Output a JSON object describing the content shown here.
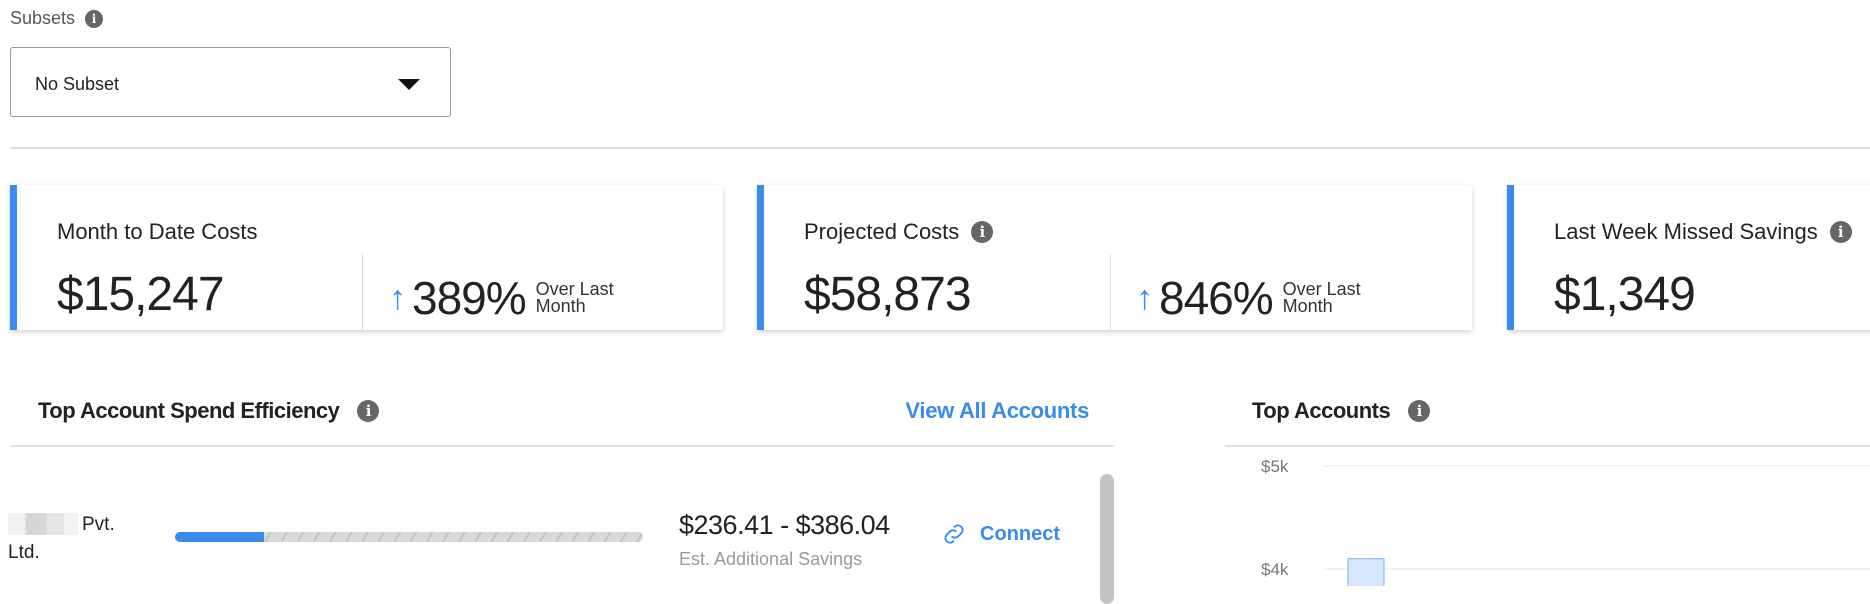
{
  "subsets": {
    "label": "Subsets",
    "selected": "No Subset",
    "info_icon": "info-icon"
  },
  "cards": [
    {
      "title": "Month to Date Costs",
      "value": "$15,247",
      "delta": "389%",
      "delta_direction": "up",
      "delta_label_1": "Over Last",
      "delta_label_2": "Month"
    },
    {
      "title": "Projected Costs",
      "value": "$58,873",
      "delta": "846%",
      "delta_direction": "up",
      "delta_label_1": "Over Last",
      "delta_label_2": "Month"
    },
    {
      "title": "Last Week Missed Savings",
      "value": "$1,349"
    }
  ],
  "efficiency": {
    "title": "Top Account Spend Efficiency",
    "view_all": "View All Accounts",
    "rows": [
      {
        "name_line1": "Pvt.",
        "name_line2": "Ltd.",
        "efficiency_percent": 19,
        "savings": "$236.41 - $386.04",
        "savings_label": "Est. Additional Savings",
        "action": "Connect"
      }
    ]
  },
  "top_accounts": {
    "title": "Top Accounts"
  },
  "colors": {
    "accent": "#3a8bef",
    "bar_fill": "#d6e6fc",
    "bar_stroke": "#7fb0f2"
  },
  "chart_data": {
    "type": "bar",
    "title": "Top Accounts",
    "y_ticks": [
      "$5k",
      "$4k"
    ],
    "values": [
      4100
    ],
    "ylim_visible": [
      4000,
      5000
    ],
    "grid": true
  }
}
